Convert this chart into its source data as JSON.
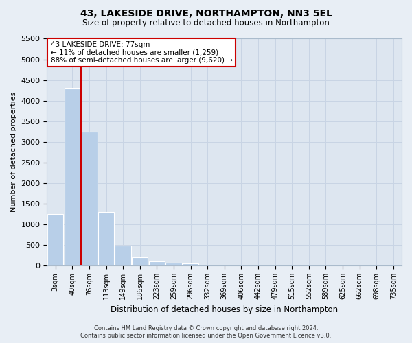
{
  "title": "43, LAKESIDE DRIVE, NORTHAMPTON, NN3 5EL",
  "subtitle": "Size of property relative to detached houses in Northampton",
  "xlabel": "Distribution of detached houses by size in Northampton",
  "ylabel": "Number of detached properties",
  "footer_line1": "Contains HM Land Registry data © Crown copyright and database right 2024.",
  "footer_line2": "Contains public sector information licensed under the Open Government Licence v3.0.",
  "annotation_line1": "43 LAKESIDE DRIVE: 77sqm",
  "annotation_line2": "← 11% of detached houses are smaller (1,259)",
  "annotation_line3": "88% of semi-detached houses are larger (9,620) →",
  "bar_color": "#b8cfe8",
  "bar_edgecolor": "#ffffff",
  "vline_color": "#cc0000",
  "annotation_box_edgecolor": "#cc0000",
  "grid_color": "#c8d4e4",
  "background_color": "#e8eef5",
  "plot_bg_color": "#dde6f0",
  "categories": [
    "3sqm",
    "40sqm",
    "76sqm",
    "113sqm",
    "149sqm",
    "186sqm",
    "223sqm",
    "259sqm",
    "296sqm",
    "332sqm",
    "369sqm",
    "406sqm",
    "442sqm",
    "479sqm",
    "515sqm",
    "552sqm",
    "589sqm",
    "625sqm",
    "662sqm",
    "698sqm",
    "735sqm"
  ],
  "bar_values": [
    1250,
    4300,
    3250,
    1300,
    480,
    200,
    100,
    70,
    50,
    0,
    0,
    0,
    0,
    0,
    0,
    0,
    0,
    0,
    0,
    0,
    0
  ],
  "ylim": [
    0,
    5500
  ],
  "yticks": [
    0,
    500,
    1000,
    1500,
    2000,
    2500,
    3000,
    3500,
    4000,
    4500,
    5000,
    5500
  ],
  "vline_x": 1.5,
  "figsize": [
    6.0,
    5.0
  ],
  "dpi": 100
}
